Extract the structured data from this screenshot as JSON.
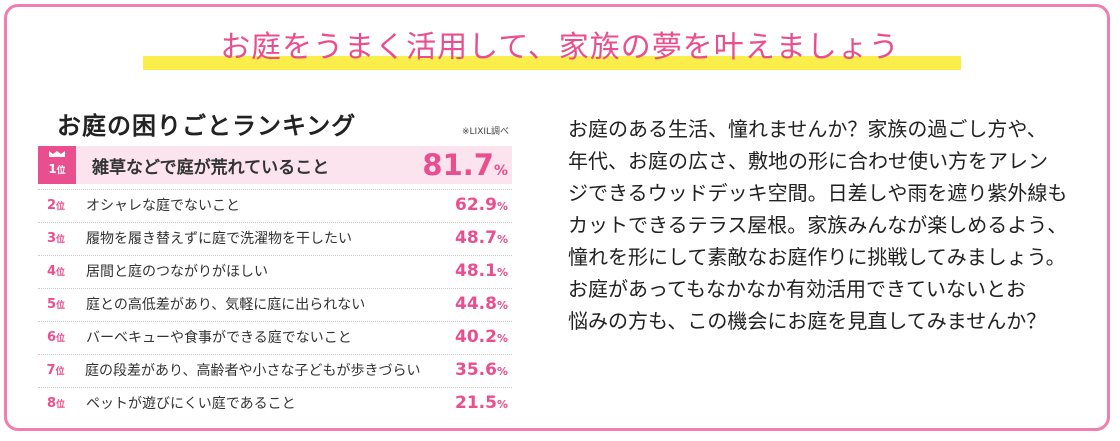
{
  "headline": "お庭をうまく活用して、家族の夢を叶えましょう",
  "ranking": {
    "title": "お庭の困りごとランキング",
    "source": "※LIXIL調べ",
    "rank_suffix": "位",
    "items": [
      {
        "rank": "1",
        "label": "雑草などで庭が荒れていること",
        "value": "81.7",
        "unit": "%"
      },
      {
        "rank": "2",
        "label": "オシャレな庭でないこと",
        "value": "62.9",
        "unit": "%"
      },
      {
        "rank": "3",
        "label": "履物を履き替えずに庭で洗濯物を干したい",
        "value": "48.7",
        "unit": "%"
      },
      {
        "rank": "4",
        "label": "居間と庭のつながりがほしい",
        "value": "48.1",
        "unit": "%"
      },
      {
        "rank": "5",
        "label": "庭との高低差があり、気軽に庭に出られない",
        "value": "44.8",
        "unit": "%"
      },
      {
        "rank": "6",
        "label": "バーベキューや食事ができる庭でないこと",
        "value": "40.2",
        "unit": "%"
      },
      {
        "rank": "7",
        "label": "庭の段差があり、高齢者や小さな子どもが歩きづらい",
        "value": "35.6",
        "unit": "%"
      },
      {
        "rank": "8",
        "label": "ペットが遊びにくい庭であること",
        "value": "21.5",
        "unit": "%"
      }
    ]
  },
  "body_lines": [
    "お庭のある生活、憧れませんか？家族の過ごし方や、",
    "年代、お庭の広さ、敷地の形に合わせ使い方をアレン",
    "ジできるウッドデッキ空間。日差しや雨を遮り紫外線も",
    "カットできるテラス屋根。家族みんなが楽しめるよう、",
    "憧れを形にして素敵なお庭作りに挑戦してみましょう。",
    "お庭があってもなかなか有効活用できていないとお",
    "悩みの方も、この機会にお庭を見直してみませんか？"
  ],
  "colors": {
    "accent": "#e94e8e",
    "highlight": "#fcee4a",
    "first_row_bg": "#fce4ee",
    "border": "#ee7fae"
  }
}
